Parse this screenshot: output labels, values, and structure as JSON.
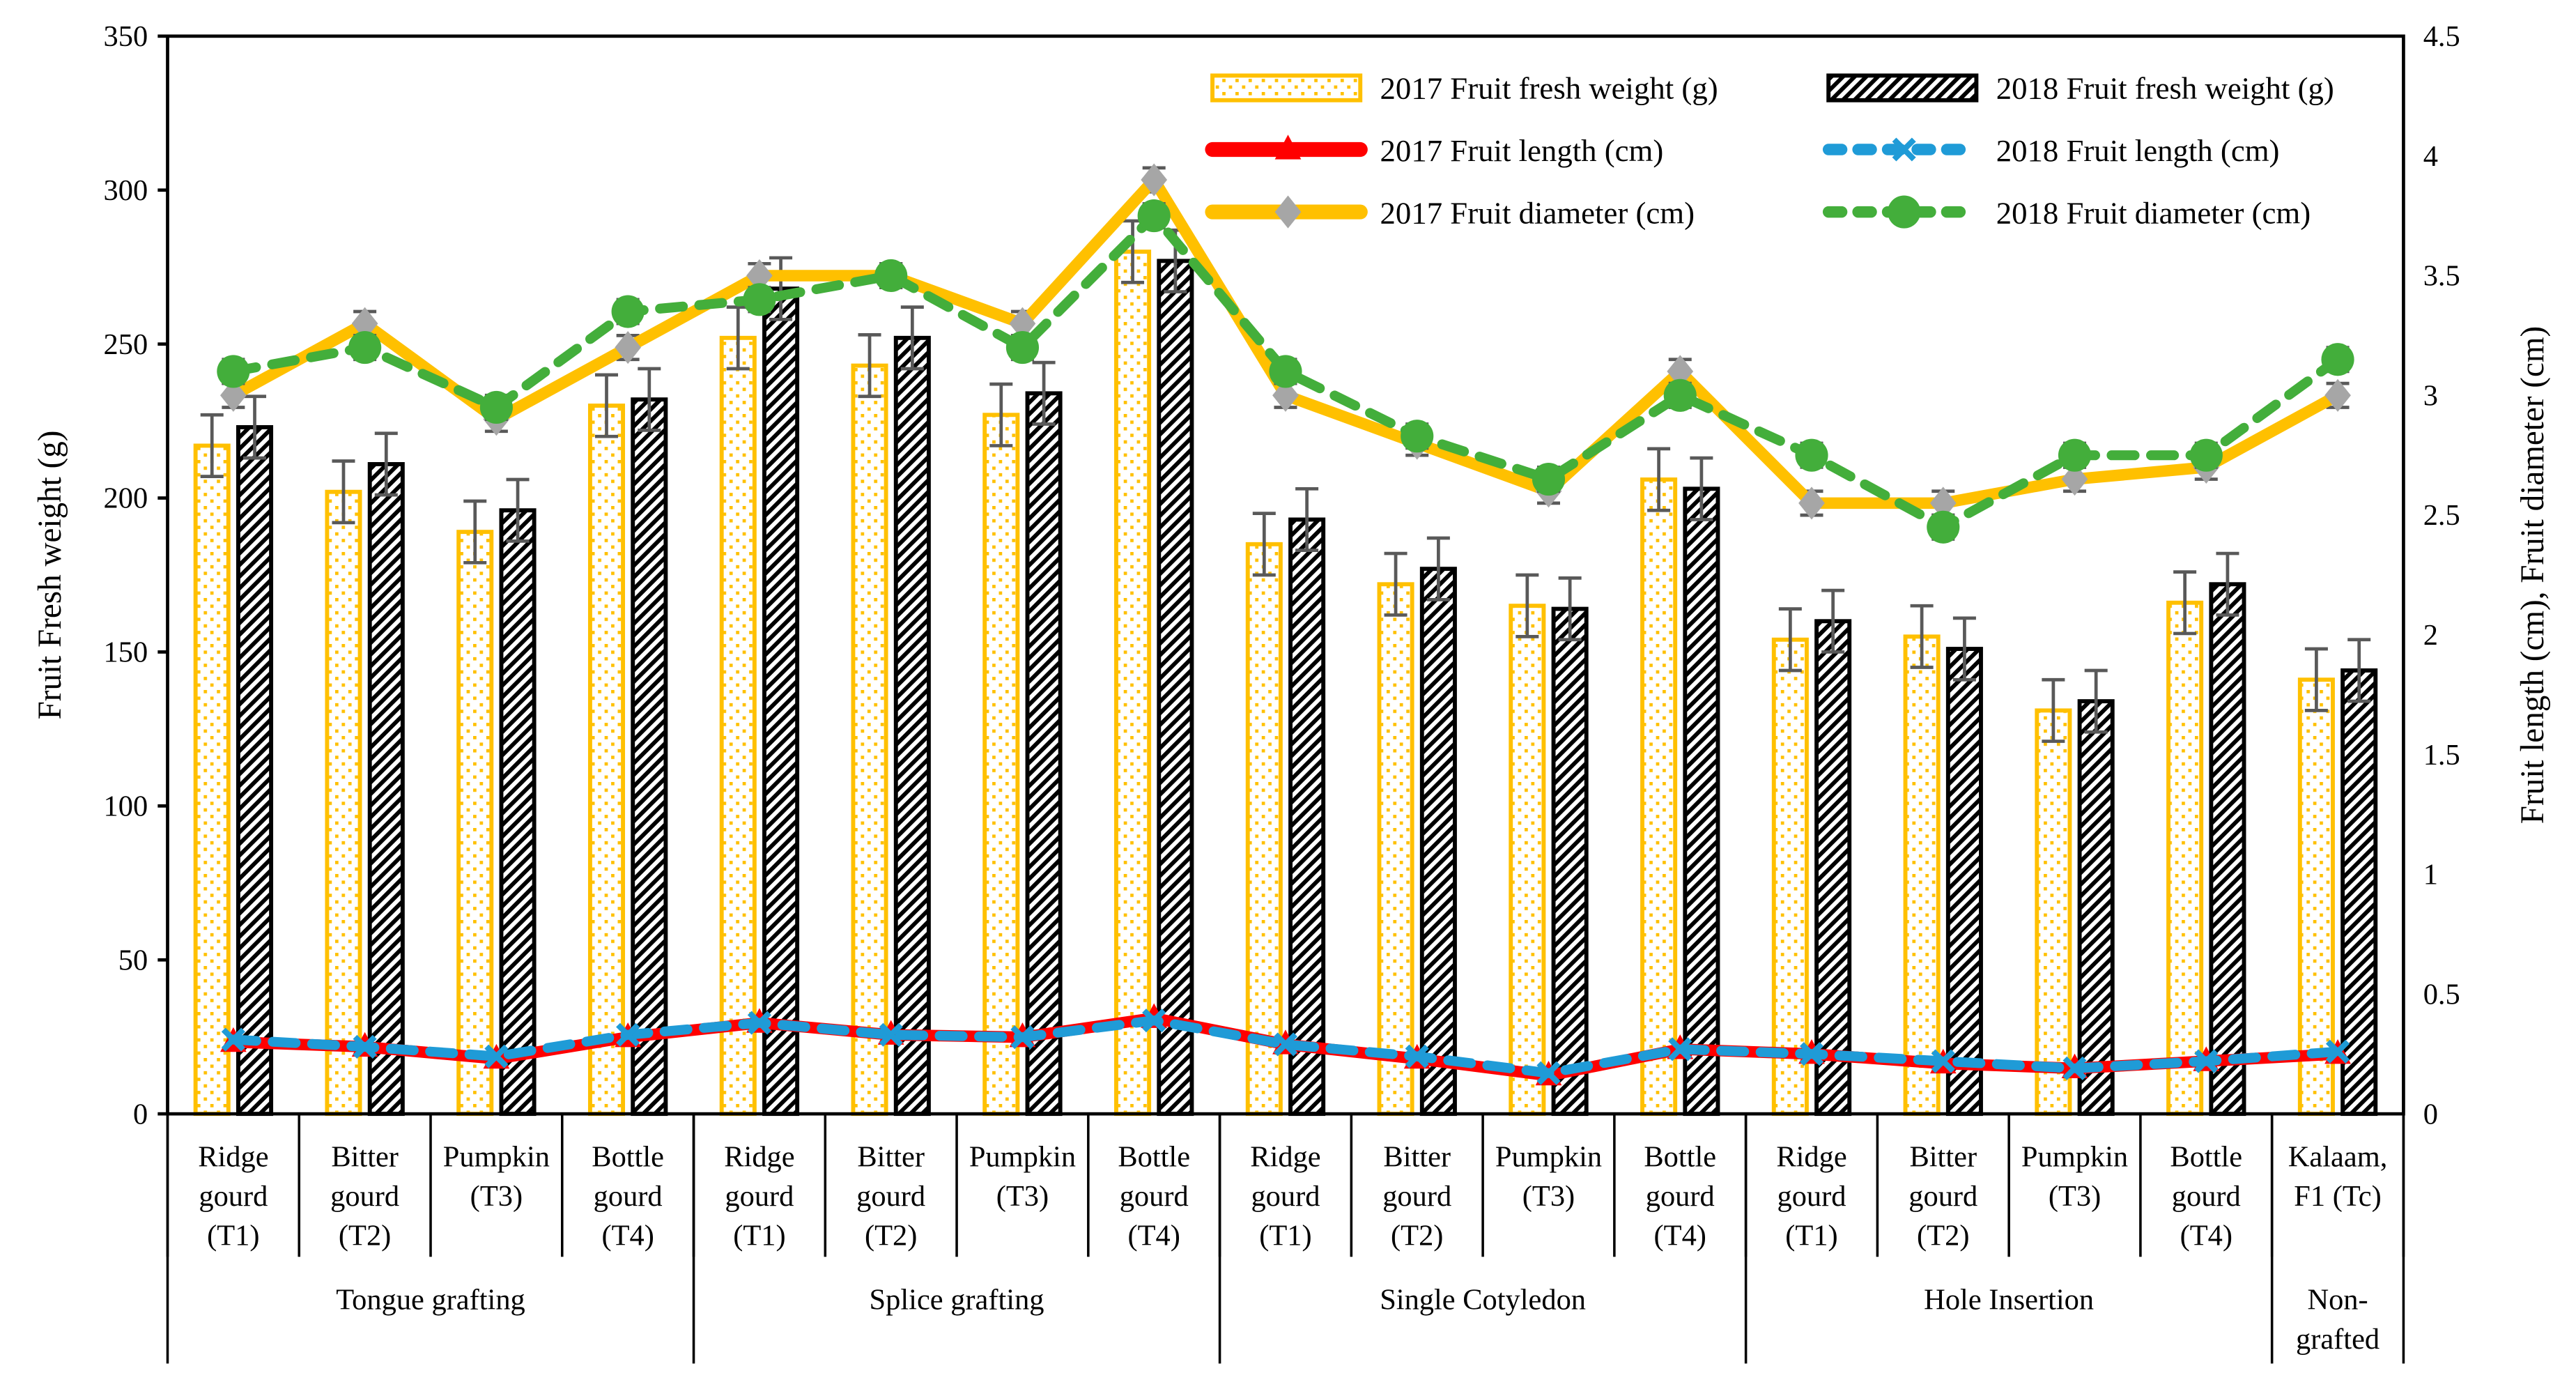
{
  "chart_data": {
    "type": "bar",
    "ylabel": "Fruit Fresh weight (g)",
    "y2label": "Fruit length (cm), Fruit diameter (cm)",
    "ylim": [
      0,
      350
    ],
    "y2lim": [
      0,
      4.5
    ],
    "yticks": [
      "0",
      "50",
      "100",
      "150",
      "200",
      "250",
      "300",
      "350"
    ],
    "y2ticks": [
      "0",
      "0.5",
      "1",
      "1.5",
      "2",
      "2.5",
      "3",
      "3.5",
      "4",
      "4.5"
    ],
    "categories": [
      [
        "Ridge",
        "gourd",
        "(T1)"
      ],
      [
        "Bitter",
        "gourd",
        "(T2)"
      ],
      [
        "Pumpkin",
        "(T3)"
      ],
      [
        "Bottle",
        "gourd",
        "(T4)"
      ],
      [
        "Ridge",
        "gourd",
        "(T1)"
      ],
      [
        "Bitter",
        "gourd",
        "(T2)"
      ],
      [
        "Pumpkin",
        "(T3)"
      ],
      [
        "Bottle",
        "gourd",
        "(T4)"
      ],
      [
        "Ridge",
        "gourd",
        "(T1)"
      ],
      [
        "Bitter",
        "gourd",
        "(T2)"
      ],
      [
        "Pumpkin",
        "(T3)"
      ],
      [
        "Bottle",
        "gourd",
        "(T4)"
      ],
      [
        "Ridge",
        "gourd",
        "(T1)"
      ],
      [
        "Bitter",
        "gourd",
        "(T2)"
      ],
      [
        "Pumpkin",
        "(T3)"
      ],
      [
        "Bottle",
        "gourd",
        "(T4)"
      ],
      [
        "Kalaam,",
        "F1 (Tc)"
      ]
    ],
    "groups": [
      {
        "label": [
          "Tongue grafting"
        ],
        "span": 4
      },
      {
        "label": [
          "Splice grafting"
        ],
        "span": 4
      },
      {
        "label": [
          "Single Cotyledon"
        ],
        "span": 4
      },
      {
        "label": [
          "Hole Insertion"
        ],
        "span": 4
      },
      {
        "label": [
          "Non-",
          "grafted"
        ],
        "span": 1
      }
    ],
    "series": [
      {
        "name": "2017 Fruit fresh weight (g)",
        "kind": "bar",
        "axis": "left",
        "color": "#FFC000",
        "values": [
          217,
          202,
          189,
          230,
          252,
          243,
          227,
          280,
          185,
          172,
          165,
          206,
          154,
          155,
          131,
          166,
          141
        ],
        "error": 10
      },
      {
        "name": "2018 Fruit fresh weight (g)",
        "kind": "bar",
        "axis": "left",
        "color": "#000000",
        "values": [
          223,
          211,
          196,
          232,
          268,
          252,
          234,
          277,
          193,
          177,
          164,
          203,
          160,
          151,
          134,
          172,
          144
        ],
        "error": 10
      },
      {
        "name": "2017 Fruit length (cm)",
        "kind": "line",
        "axis": "right",
        "color": "#FF0000",
        "marker": "triangle",
        "values": [
          0.3,
          0.28,
          0.23,
          0.32,
          0.38,
          0.33,
          0.32,
          0.4,
          0.29,
          0.23,
          0.16,
          0.27,
          0.25,
          0.21,
          0.19,
          0.22,
          0.25
        ]
      },
      {
        "name": "2018 Fruit length (cm)",
        "kind": "line",
        "axis": "right",
        "color": "#1F9BD7",
        "marker": "x",
        "dashed": true,
        "values": [
          0.31,
          0.28,
          0.24,
          0.33,
          0.38,
          0.33,
          0.32,
          0.39,
          0.29,
          0.24,
          0.17,
          0.27,
          0.25,
          0.22,
          0.19,
          0.22,
          0.26
        ]
      },
      {
        "name": "2017 Fruit diameter (cm)",
        "kind": "line",
        "axis": "right",
        "color": "#FFC000",
        "marker": "diamond",
        "marker_color": "#A6A6A6",
        "values": [
          3.0,
          3.3,
          2.9,
          3.2,
          3.5,
          3.5,
          3.3,
          3.9,
          3.0,
          2.8,
          2.6,
          3.1,
          2.55,
          2.55,
          2.65,
          2.7,
          3.0
        ],
        "error": 0.05
      },
      {
        "name": "2018 Fruit diameter (cm)",
        "kind": "line",
        "axis": "right",
        "color": "#43AE3B",
        "marker": "circle",
        "dashed": true,
        "values": [
          3.1,
          3.2,
          2.95,
          3.35,
          3.4,
          3.5,
          3.2,
          3.75,
          3.1,
          2.83,
          2.65,
          3.0,
          2.75,
          2.45,
          2.75,
          2.75,
          3.15
        ],
        "error": 0.05
      }
    ],
    "legend_position": "top-right"
  }
}
